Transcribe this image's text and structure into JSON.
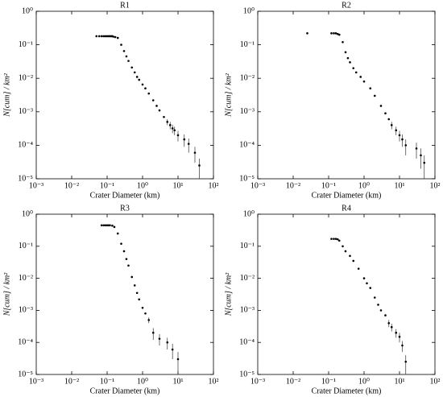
{
  "chart_data": [
    {
      "type": "scatter",
      "title": "R1",
      "xlabel": "Crater Diameter (km)",
      "ylabel": "N[cum] / km²",
      "xscale": "log",
      "yscale": "log",
      "color": "#000000",
      "xlim": [
        0.001,
        100
      ],
      "ylim": [
        1e-05,
        1
      ],
      "xticks": [
        {
          "value": 0.001,
          "label": "10⁻³"
        },
        {
          "value": 0.01,
          "label": "10⁻²"
        },
        {
          "value": 0.1,
          "label": "10⁻¹"
        },
        {
          "value": 1,
          "label": "10⁰"
        },
        {
          "value": 10,
          "label": "10¹"
        },
        {
          "value": 100,
          "label": "10²"
        }
      ],
      "yticks": [
        {
          "value": 1e-05,
          "label": "10⁻⁵"
        },
        {
          "value": 0.0001,
          "label": "10⁻⁴"
        },
        {
          "value": 0.001,
          "label": "10⁻³"
        },
        {
          "value": 0.01,
          "label": "10⁻²"
        },
        {
          "value": 0.1,
          "label": "10⁻¹"
        },
        {
          "value": 1,
          "label": "10⁰"
        }
      ],
      "x": [
        0.05,
        0.06,
        0.07,
        0.08,
        0.09,
        0.1,
        0.11,
        0.12,
        0.13,
        0.14,
        0.15,
        0.17,
        0.2,
        0.25,
        0.3,
        0.35,
        0.4,
        0.5,
        0.6,
        0.7,
        0.8,
        1.0,
        1.2,
        1.5,
        2,
        2.5,
        3,
        4,
        5,
        6,
        7,
        8,
        10,
        15,
        20,
        30,
        40
      ],
      "values": [
        0.18,
        0.18,
        0.18,
        0.18,
        0.18,
        0.18,
        0.18,
        0.18,
        0.18,
        0.18,
        0.175,
        0.17,
        0.16,
        0.1,
        0.065,
        0.045,
        0.033,
        0.021,
        0.015,
        0.011,
        0.009,
        0.0065,
        0.005,
        0.0035,
        0.0022,
        0.0015,
        0.0011,
        0.0007,
        0.0005,
        0.0004,
        0.00032,
        0.00028,
        0.0002,
        0.00015,
        0.00011,
        6e-05,
        2.5e-05
      ],
      "yerr": [
        null,
        null,
        null,
        null,
        null,
        null,
        null,
        null,
        null,
        null,
        null,
        null,
        null,
        null,
        null,
        null,
        null,
        null,
        null,
        null,
        null,
        null,
        null,
        null,
        null,
        null,
        null,
        null,
        0.0001,
        0.0001,
        9e-05,
        8e-05,
        7e-05,
        6e-05,
        5e-05,
        3e-05,
        1.5e-05
      ]
    },
    {
      "type": "scatter",
      "title": "R2",
      "xlabel": "Crater Diameter (km)",
      "ylabel": "N[cum] / km²",
      "xscale": "log",
      "yscale": "log",
      "color": "#000000",
      "xlim": [
        0.001,
        100
      ],
      "ylim": [
        1e-05,
        1
      ],
      "xticks": [
        {
          "value": 0.001,
          "label": "10⁻³"
        },
        {
          "value": 0.01,
          "label": "10⁻²"
        },
        {
          "value": 0.1,
          "label": "10⁻¹"
        },
        {
          "value": 1,
          "label": "10⁰"
        },
        {
          "value": 10,
          "label": "10¹"
        },
        {
          "value": 100,
          "label": "10²"
        }
      ],
      "yticks": [
        {
          "value": 1e-05,
          "label": "10⁻⁵"
        },
        {
          "value": 0.0001,
          "label": "10⁻⁴"
        },
        {
          "value": 0.001,
          "label": "10⁻³"
        },
        {
          "value": 0.01,
          "label": "10⁻²"
        },
        {
          "value": 0.1,
          "label": "10⁻¹"
        },
        {
          "value": 1,
          "label": "10⁰"
        }
      ],
      "x": [
        0.025,
        0.12,
        0.14,
        0.16,
        0.18,
        0.2,
        0.25,
        0.3,
        0.35,
        0.4,
        0.5,
        0.6,
        0.8,
        1,
        1.5,
        2,
        3,
        4,
        5,
        6,
        8,
        10,
        12,
        15,
        30,
        40,
        50
      ],
      "values": [
        0.22,
        0.22,
        0.22,
        0.22,
        0.21,
        0.2,
        0.12,
        0.06,
        0.04,
        0.03,
        0.02,
        0.015,
        0.011,
        0.008,
        0.005,
        0.003,
        0.0015,
        0.0009,
        0.0006,
        0.0004,
        0.00028,
        0.0002,
        0.00015,
        0.0001,
        8e-05,
        5e-05,
        3e-05
      ],
      "yerr": [
        null,
        null,
        null,
        null,
        null,
        null,
        null,
        null,
        null,
        null,
        null,
        null,
        null,
        null,
        null,
        null,
        null,
        null,
        null,
        0.0001,
        8e-05,
        7e-05,
        6e-05,
        5e-05,
        4e-05,
        3e-05,
        2e-05
      ]
    },
    {
      "type": "scatter",
      "title": "R3",
      "xlabel": "Crater Diameter (km)",
      "ylabel": "N[cum] / km²",
      "xscale": "log",
      "yscale": "log",
      "color": "#000000",
      "xlim": [
        0.001,
        100
      ],
      "ylim": [
        1e-05,
        1
      ],
      "xticks": [
        {
          "value": 0.001,
          "label": "10⁻³"
        },
        {
          "value": 0.01,
          "label": "10⁻²"
        },
        {
          "value": 0.1,
          "label": "10⁻¹"
        },
        {
          "value": 1,
          "label": "10⁰"
        },
        {
          "value": 10,
          "label": "10¹"
        },
        {
          "value": 100,
          "label": "10²"
        }
      ],
      "yticks": [
        {
          "value": 1e-05,
          "label": "10⁻⁵"
        },
        {
          "value": 0.0001,
          "label": "10⁻⁴"
        },
        {
          "value": 0.001,
          "label": "10⁻³"
        },
        {
          "value": 0.01,
          "label": "10⁻²"
        },
        {
          "value": 0.1,
          "label": "10⁻¹"
        },
        {
          "value": 1,
          "label": "10⁰"
        }
      ],
      "x": [
        0.07,
        0.08,
        0.09,
        0.1,
        0.11,
        0.12,
        0.14,
        0.16,
        0.2,
        0.25,
        0.3,
        0.35,
        0.4,
        0.5,
        0.6,
        0.7,
        0.8,
        1,
        1.2,
        1.5,
        2,
        3,
        5,
        7,
        10
      ],
      "values": [
        0.45,
        0.45,
        0.45,
        0.45,
        0.45,
        0.45,
        0.44,
        0.4,
        0.25,
        0.12,
        0.07,
        0.04,
        0.025,
        0.011,
        0.006,
        0.0035,
        0.0022,
        0.0012,
        0.0008,
        0.0005,
        0.0002,
        0.00013,
        0.0001,
        6e-05,
        3e-05
      ],
      "yerr": [
        null,
        null,
        null,
        null,
        null,
        null,
        null,
        null,
        null,
        null,
        null,
        null,
        null,
        null,
        null,
        null,
        null,
        null,
        null,
        0.0001,
        8e-05,
        5e-05,
        4e-05,
        3e-05,
        2e-05
      ]
    },
    {
      "type": "scatter",
      "title": "R4",
      "xlabel": "Crater Diameter (km)",
      "ylabel": "N[cum] / km²",
      "xscale": "log",
      "yscale": "log",
      "color": "#000000",
      "xlim": [
        0.001,
        100
      ],
      "ylim": [
        1e-05,
        1
      ],
      "xticks": [
        {
          "value": 0.001,
          "label": "10⁻³"
        },
        {
          "value": 0.01,
          "label": "10⁻²"
        },
        {
          "value": 0.1,
          "label": "10⁻¹"
        },
        {
          "value": 1,
          "label": "10⁰"
        },
        {
          "value": 10,
          "label": "10¹"
        },
        {
          "value": 100,
          "label": "10²"
        }
      ],
      "yticks": [
        {
          "value": 1e-05,
          "label": "10⁻⁵"
        },
        {
          "value": 0.0001,
          "label": "10⁻⁴"
        },
        {
          "value": 0.001,
          "label": "10⁻³"
        },
        {
          "value": 0.01,
          "label": "10⁻²"
        },
        {
          "value": 0.1,
          "label": "10⁻¹"
        },
        {
          "value": 1,
          "label": "10⁰"
        }
      ],
      "x": [
        0.12,
        0.14,
        0.16,
        0.18,
        0.2,
        0.25,
        0.3,
        0.4,
        0.5,
        0.7,
        1,
        1.2,
        1.5,
        2,
        2.5,
        3,
        4,
        5,
        6,
        8,
        10,
        12,
        15
      ],
      "values": [
        0.17,
        0.17,
        0.17,
        0.165,
        0.15,
        0.1,
        0.07,
        0.05,
        0.035,
        0.02,
        0.01,
        0.007,
        0.005,
        0.0025,
        0.0015,
        0.001,
        0.0007,
        0.0004,
        0.0003,
        0.0002,
        0.00015,
        8e-05,
        2.5e-05
      ],
      "yerr": [
        null,
        null,
        null,
        null,
        null,
        null,
        null,
        null,
        null,
        null,
        null,
        null,
        null,
        null,
        null,
        null,
        null,
        0.0001,
        8e-05,
        6e-05,
        5e-05,
        3e-05,
        1.5e-05
      ]
    }
  ]
}
